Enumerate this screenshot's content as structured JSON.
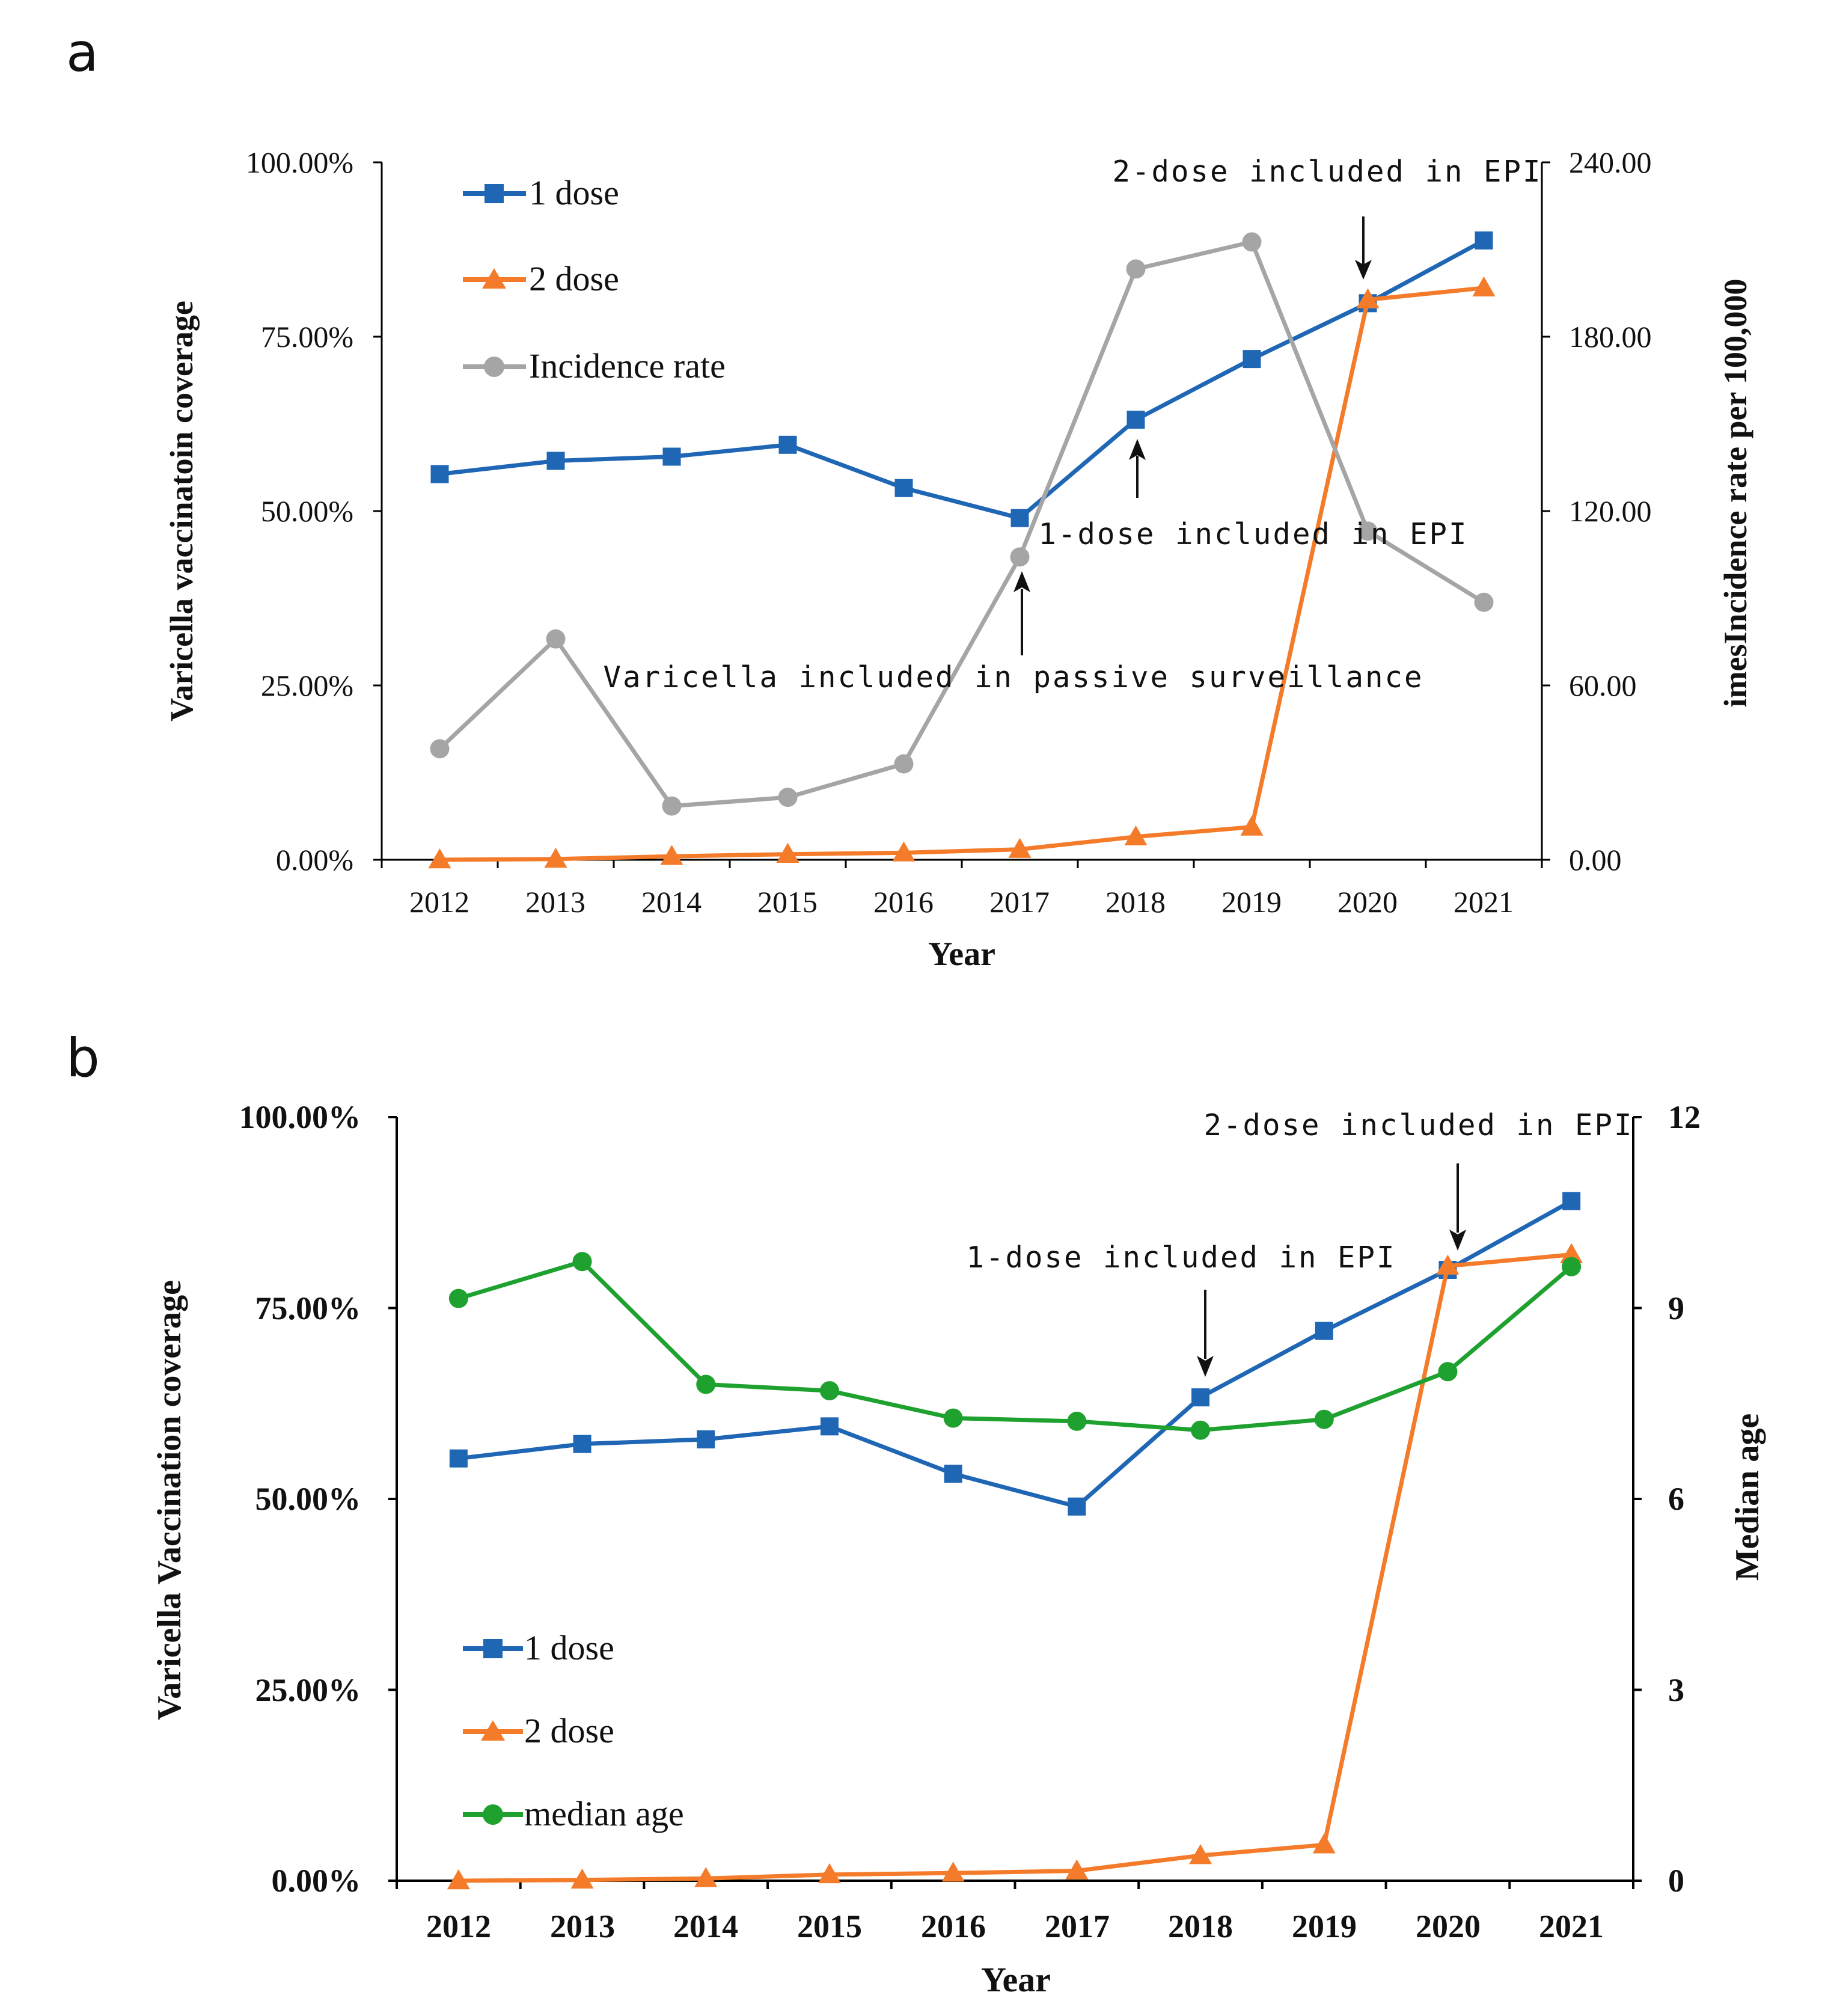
{
  "chart_data": [
    {
      "panel_label": "a",
      "type": "line",
      "title": "",
      "xlabel": "Year",
      "ylabel": "Varicella vaccinatoin coverage",
      "y2label": "imesIncidence rate per 100,000",
      "categories": [
        "2012",
        "2013",
        "2014",
        "2015",
        "2016",
        "2017",
        "2018",
        "2019",
        "2020",
        "2021"
      ],
      "ylim": [
        0,
        100
      ],
      "yticks": [
        "0.00%",
        "25.00%",
        "50.00%",
        "75.00%",
        "100.00%"
      ],
      "y2lim": [
        0,
        240
      ],
      "y2ticks": [
        "0.00",
        "60.00",
        "120.00",
        "180.00",
        "240.00"
      ],
      "legend_position": "top-left",
      "series": [
        {
          "name": "1 dose",
          "axis": "left",
          "color": "#1f66b4",
          "marker": "square",
          "values": [
            55.3,
            57.2,
            57.8,
            59.5,
            53.3,
            49.0,
            63.1,
            71.8,
            79.8,
            88.8
          ]
        },
        {
          "name": "2 dose",
          "axis": "left",
          "color": "#f47b2a",
          "marker": "triangle",
          "values": [
            0.0,
            0.1,
            0.5,
            0.8,
            1.0,
            1.5,
            3.3,
            4.7,
            80.3,
            82.0
          ]
        },
        {
          "name": "Incidence rate",
          "axis": "right",
          "color": "#a5a5a5",
          "marker": "circle",
          "values": [
            38.2,
            76.0,
            18.5,
            21.5,
            33.0,
            104.2,
            203.3,
            212.6,
            113.1,
            88.6
          ]
        }
      ],
      "annotations": [
        {
          "text": "2-dose included in EPI",
          "year": "2020",
          "arrow": "down"
        },
        {
          "text": "1-dose included in EPI",
          "year": "2018",
          "arrow": "up"
        },
        {
          "text": "Varicella included in passive surveillance",
          "year": "2017",
          "arrow": "up"
        }
      ]
    },
    {
      "panel_label": "b",
      "type": "line",
      "title": "",
      "xlabel": "Year",
      "ylabel": "Varicella Vaccination coverage",
      "y2label": "Median age",
      "categories": [
        "2012",
        "2013",
        "2014",
        "2015",
        "2016",
        "2017",
        "2018",
        "2019",
        "2020",
        "2021"
      ],
      "ylim": [
        0,
        100
      ],
      "yticks": [
        "0.00%",
        "25.00%",
        "50.00%",
        "75.00%",
        "100.00%"
      ],
      "y2lim": [
        0,
        12
      ],
      "y2ticks": [
        "0",
        "3",
        "6",
        "9",
        "12"
      ],
      "legend_position": "bottom-left",
      "series": [
        {
          "name": "1 dose",
          "axis": "left",
          "color": "#1f66b4",
          "marker": "square",
          "values": [
            55.3,
            57.2,
            57.8,
            59.5,
            53.3,
            49.0,
            63.3,
            72.0,
            80.0,
            89.0
          ]
        },
        {
          "name": "2 dose",
          "axis": "left",
          "color": "#f47b2a",
          "marker": "triangle",
          "values": [
            0.0,
            0.1,
            0.3,
            0.8,
            1.0,
            1.3,
            3.3,
            4.7,
            80.5,
            82.0
          ]
        },
        {
          "name": "median age",
          "axis": "right",
          "color": "#1fa12f",
          "marker": "circle",
          "values": [
            9.15,
            9.73,
            7.8,
            7.7,
            7.27,
            7.22,
            7.08,
            7.25,
            8.0,
            9.65
          ]
        }
      ],
      "annotations": [
        {
          "text": "2-dose included in EPI",
          "year": "2020",
          "arrow": "down"
        },
        {
          "text": "1-dose included in EPI",
          "year": "2018",
          "arrow": "down"
        }
      ]
    }
  ]
}
